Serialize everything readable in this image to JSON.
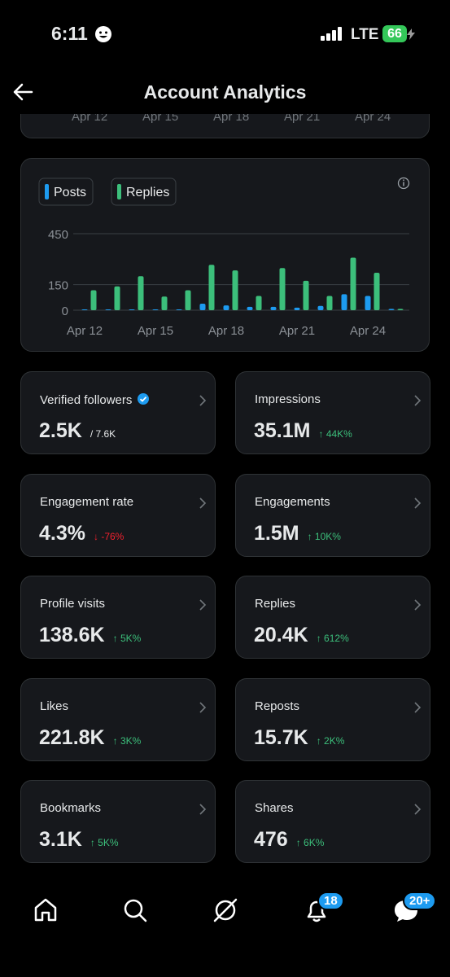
{
  "status_bar": {
    "time": "6:11",
    "network": "LTE",
    "battery": "66"
  },
  "header": {
    "title": "Account Analytics"
  },
  "previous_chart": {
    "x_labels": [
      "Apr 12",
      "Apr 15",
      "Apr 18",
      "Apr 21",
      "Apr 24"
    ]
  },
  "chart_data": {
    "type": "bar",
    "categories": [
      "Apr 12",
      null,
      null,
      "Apr 15",
      null,
      null,
      "Apr 18",
      null,
      null,
      "Apr 21",
      null,
      null,
      "Apr 24",
      null
    ],
    "series": [
      {
        "name": "Posts",
        "color": "#1d9bf0",
        "values": [
          5,
          5,
          5,
          5,
          5,
          38,
          28,
          20,
          20,
          15,
          25,
          94,
          84,
          8
        ]
      },
      {
        "name": "Replies",
        "color": "#3cbf7b",
        "values": [
          117,
          140,
          200,
          80,
          117,
          267,
          234,
          84,
          248,
          173,
          84,
          309,
          220,
          8
        ]
      }
    ],
    "ylim": [
      0,
      450
    ],
    "yticks": [
      0,
      150,
      450
    ],
    "grid": true
  },
  "stats": [
    {
      "label": "Verified followers",
      "value": "2.5K",
      "detail": "/ 7.6K",
      "color": "#e7e9ea",
      "verified": true
    },
    {
      "label": "Impressions",
      "value": "35.1M",
      "detail": "↑ 44K%",
      "color": "#3cbf7b"
    },
    {
      "label": "Engagement rate",
      "value": "4.3%",
      "detail": "↓ -76%",
      "color": "#f4212e"
    },
    {
      "label": "Engagements",
      "value": "1.5M",
      "detail": "↑ 10K%",
      "color": "#3cbf7b"
    },
    {
      "label": "Profile visits",
      "value": "138.6K",
      "detail": "↑ 5K%",
      "color": "#3cbf7b"
    },
    {
      "label": "Replies",
      "value": "20.4K",
      "detail": "↑ 612%",
      "color": "#3cbf7b"
    },
    {
      "label": "Likes",
      "value": "221.8K",
      "detail": "↑ 3K%",
      "color": "#3cbf7b"
    },
    {
      "label": "Reposts",
      "value": "15.7K",
      "detail": "↑ 2K%",
      "color": "#3cbf7b"
    },
    {
      "label": "Bookmarks",
      "value": "3.1K",
      "detail": "↑ 5K%",
      "color": "#3cbf7b"
    },
    {
      "label": "Shares",
      "value": "476",
      "detail": "↑ 6K%",
      "color": "#3cbf7b"
    }
  ],
  "nav": {
    "notifications_badge": "18",
    "messages_badge": "20+"
  }
}
